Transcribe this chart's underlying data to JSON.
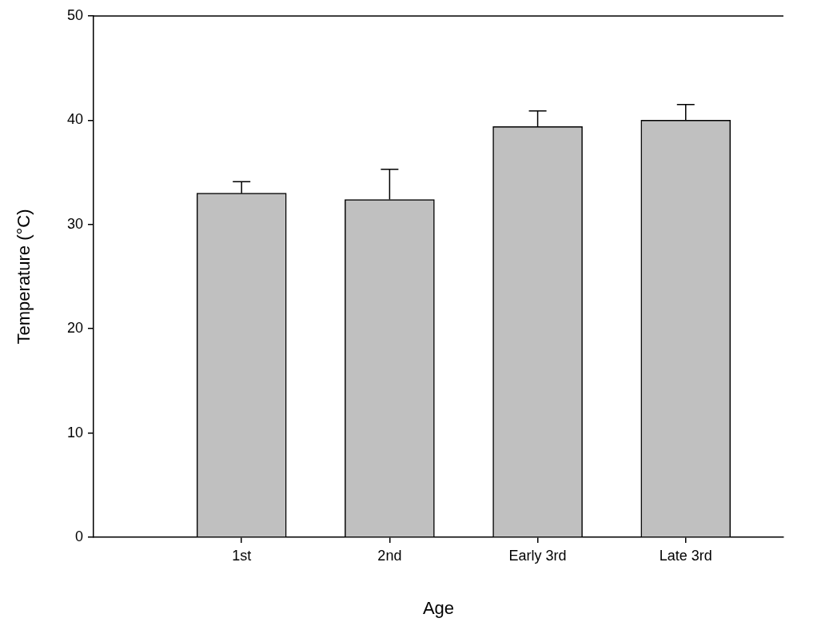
{
  "chart_data": {
    "type": "bar",
    "xlabel": "Age",
    "ylabel": "Temperature (°C)",
    "categories": [
      "1st",
      "2nd",
      "Early 3rd",
      "Late 3rd"
    ],
    "values": [
      33.0,
      32.4,
      39.4,
      40.0
    ],
    "errors": [
      [
        33.0,
        34.1
      ],
      [
        32.4,
        35.3
      ],
      [
        39.4,
        40.9
      ],
      [
        40.0,
        41.5
      ]
    ],
    "color": "#c0c0c0",
    "ylim": [
      0,
      50
    ],
    "yticks": [
      0,
      10,
      20,
      30,
      40,
      50
    ],
    "legend": false
  }
}
